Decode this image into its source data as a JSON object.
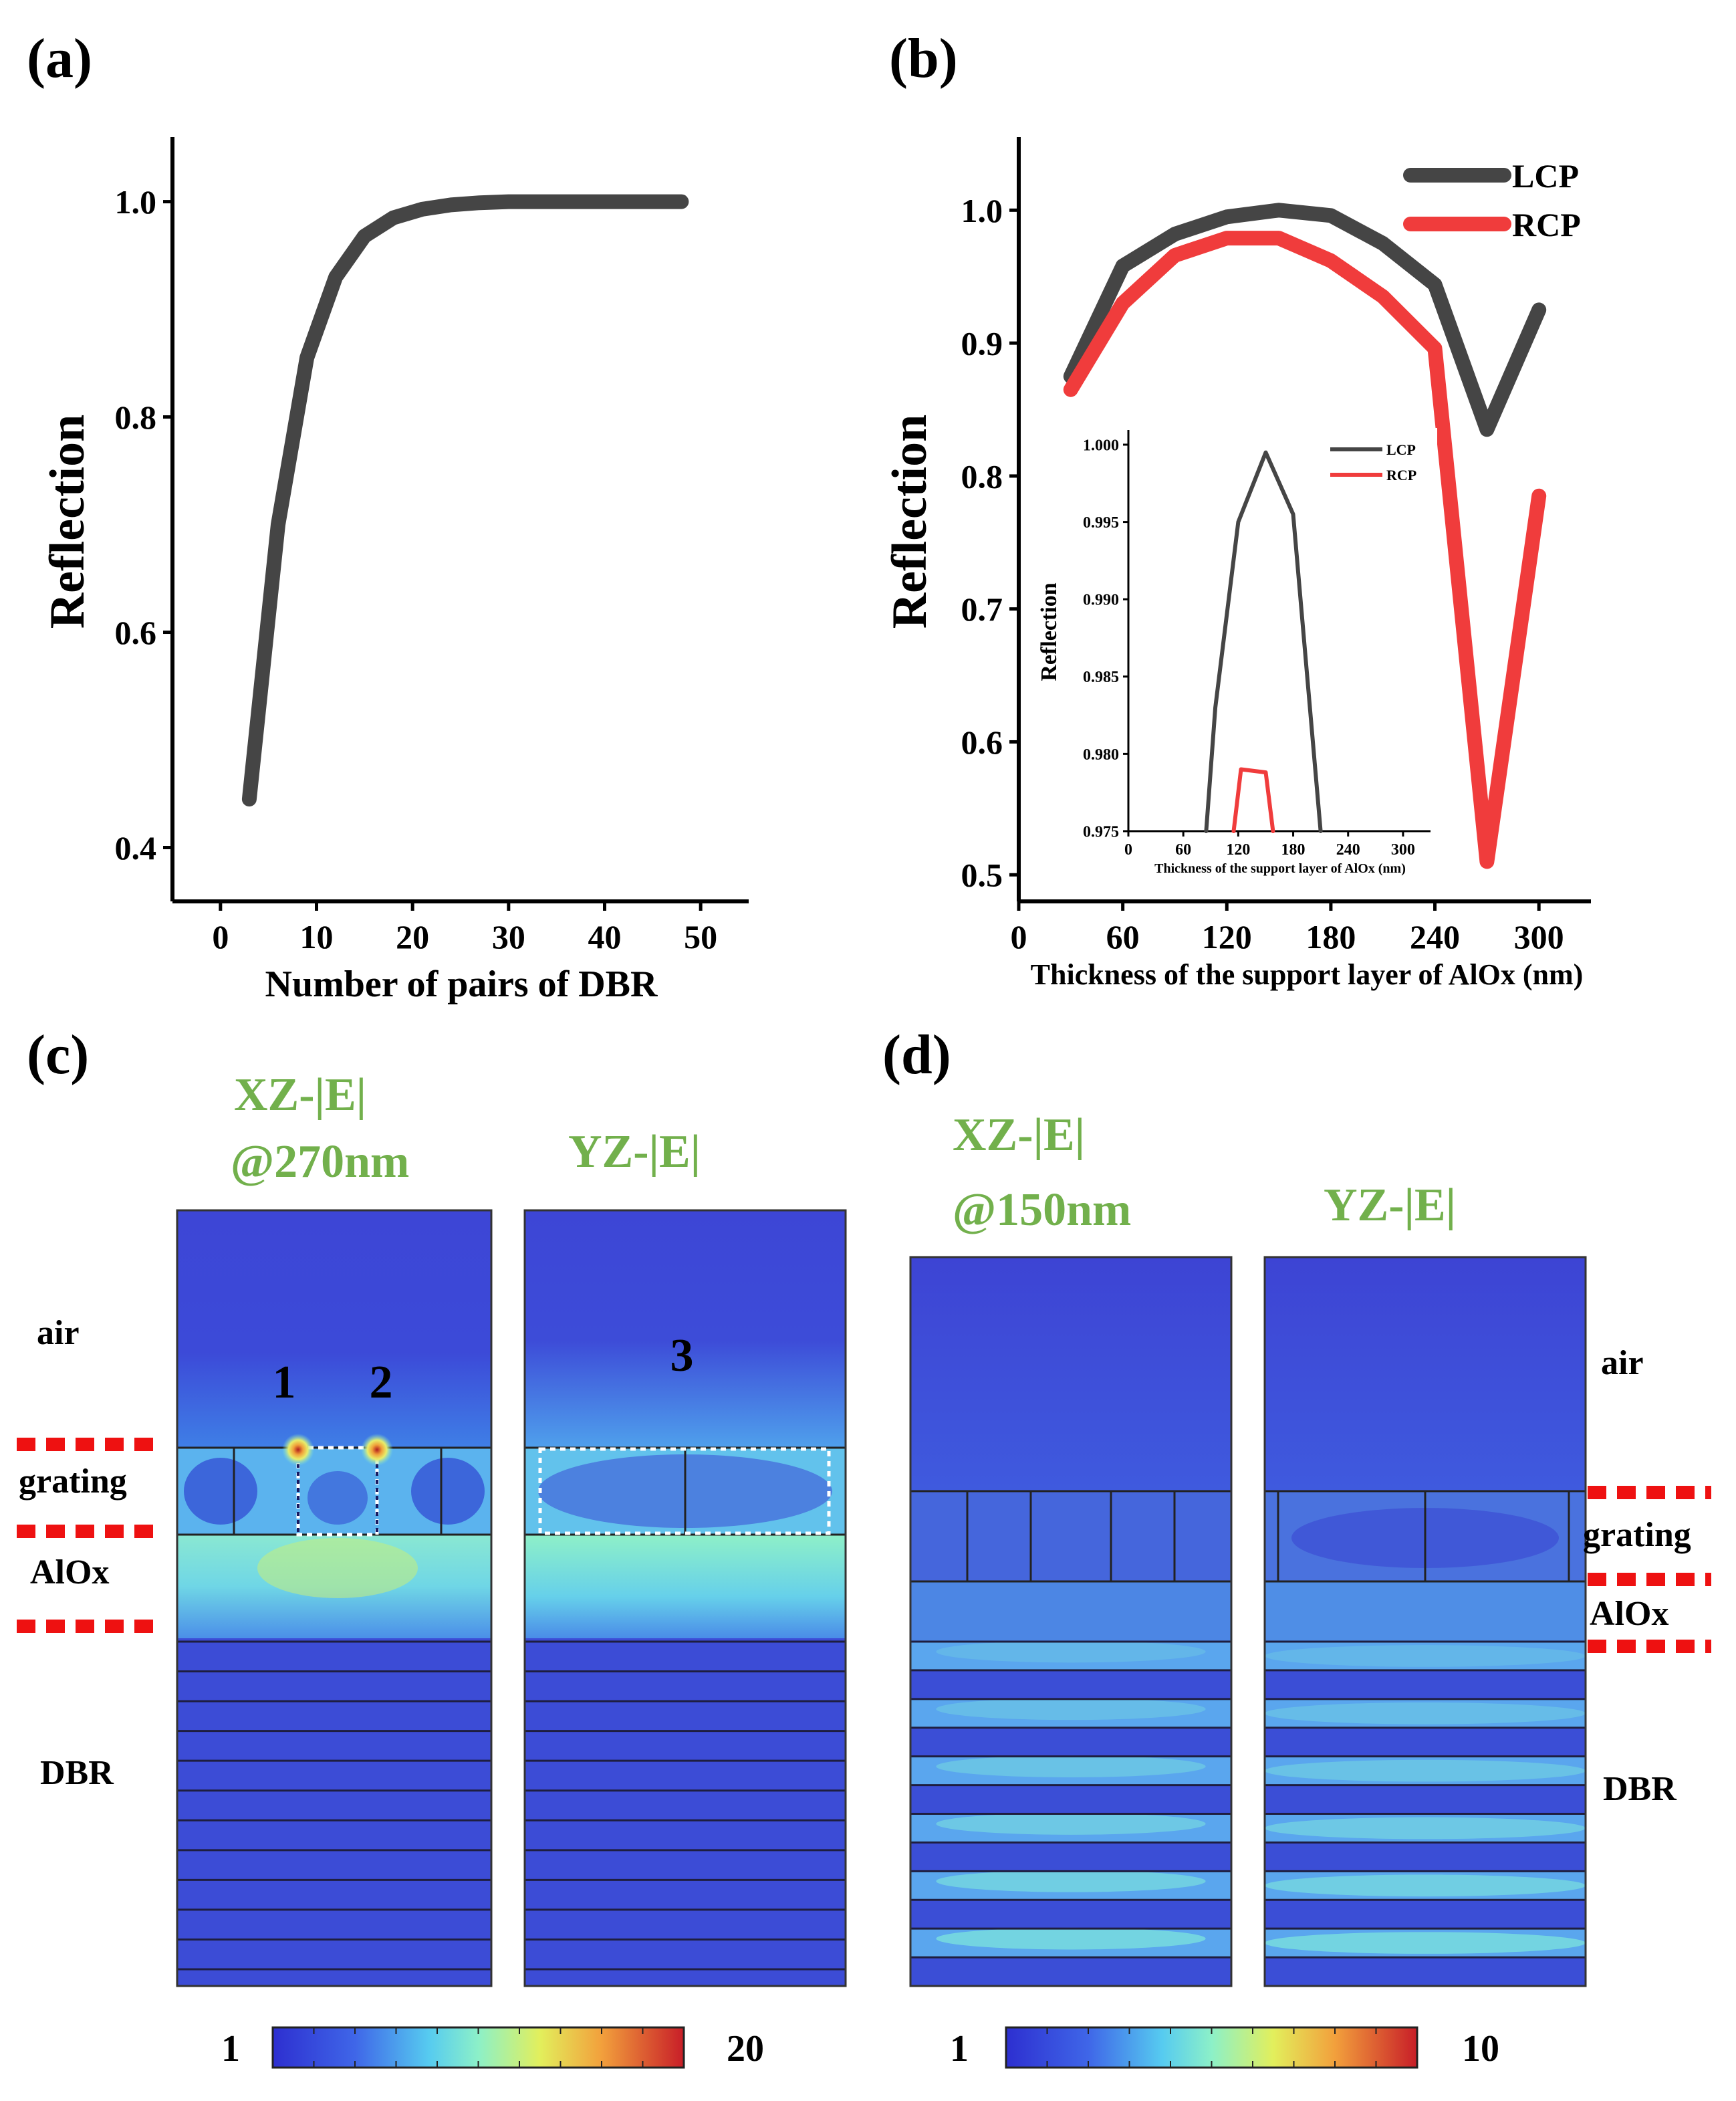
{
  "panels": {
    "a": {
      "label": "(a)"
    },
    "b": {
      "label": "(b)"
    },
    "c": {
      "label": "(c)"
    },
    "d": {
      "label": "(d)"
    }
  },
  "chart_data": [
    {
      "id": "a",
      "type": "line",
      "xlabel": "Number of pairs of DBR",
      "ylabel": "Reflection",
      "xlim": [
        -5,
        55
      ],
      "ylim": [
        0.35,
        1.06
      ],
      "xticks": [
        0,
        10,
        20,
        30,
        40,
        50
      ],
      "yticks": [
        0.4,
        0.6,
        0.8,
        1.0
      ],
      "xtick_labels": [
        "0",
        "10",
        "20",
        "30",
        "40",
        "50"
      ],
      "ytick_labels": [
        "0.4",
        "0.6",
        "0.8",
        "1.0"
      ],
      "series": [
        {
          "name": "DBR",
          "color": "#454545",
          "x": [
            3,
            6,
            9,
            12,
            15,
            18,
            21,
            24,
            27,
            30,
            36,
            42,
            48
          ],
          "y": [
            0.445,
            0.7,
            0.855,
            0.93,
            0.968,
            0.985,
            0.993,
            0.997,
            0.999,
            1.0,
            1.0,
            1.0,
            1.0
          ]
        }
      ]
    },
    {
      "id": "b",
      "type": "line",
      "xlabel": "Thickness of the support layer of AlOx (nm)",
      "ylabel": "Reflection",
      "xlim": [
        0,
        330
      ],
      "ylim": [
        0.48,
        1.055
      ],
      "xticks": [
        0,
        60,
        120,
        180,
        240,
        300
      ],
      "yticks": [
        0.5,
        0.6,
        0.7,
        0.8,
        0.9,
        1.0
      ],
      "xtick_labels": [
        "0",
        "60",
        "120",
        "180",
        "240",
        "300"
      ],
      "ytick_labels": [
        "0.5",
        "0.6",
        "0.7",
        "0.8",
        "0.9",
        "1.0"
      ],
      "legend": "top-right",
      "series": [
        {
          "name": "LCP",
          "color": "#454545",
          "x": [
            30,
            60,
            90,
            120,
            150,
            180,
            210,
            240,
            270,
            300
          ],
          "y": [
            0.875,
            0.958,
            0.982,
            0.995,
            1.0,
            0.996,
            0.975,
            0.944,
            0.835,
            0.925
          ]
        },
        {
          "name": "RCP",
          "color": "#f03c3c",
          "x": [
            30,
            60,
            90,
            120,
            150,
            180,
            210,
            240,
            270,
            300
          ],
          "y": [
            0.865,
            0.93,
            0.966,
            0.979,
            0.979,
            0.962,
            0.935,
            0.896,
            0.51,
            0.785
          ]
        }
      ]
    },
    {
      "id": "b-inset",
      "type": "line",
      "xlabel": "Thickness of the support layer of AlOx (nm)",
      "ylabel": "Reflection",
      "xlim": [
        0,
        330
      ],
      "ylim": [
        0.975,
        1.0
      ],
      "xticks": [
        0,
        60,
        120,
        180,
        240,
        300
      ],
      "yticks": [
        0.975,
        0.98,
        0.985,
        0.99,
        0.995,
        1.0
      ],
      "xtick_labels": [
        "0",
        "60",
        "120",
        "180",
        "240",
        "300"
      ],
      "ytick_labels": [
        "0.975",
        "0.980",
        "0.985",
        "0.990",
        "0.995",
        "1.000"
      ],
      "legend": "top-right",
      "series": [
        {
          "name": "LCP",
          "color": "#454545",
          "x": [
            85,
            95,
            120,
            150,
            180,
            210
          ],
          "y": [
            0.975,
            0.983,
            0.995,
            0.9995,
            0.9955,
            0.975
          ]
        },
        {
          "name": "RCP",
          "color": "#f03c3c",
          "x": [
            115,
            123,
            150,
            158
          ],
          "y": [
            0.975,
            0.979,
            0.9788,
            0.975
          ]
        }
      ]
    }
  ],
  "panel_c": {
    "title1_line1": "XZ-|E|",
    "title1_line2": "@270nm",
    "title2": "YZ-|E|",
    "labels": {
      "air": "air",
      "grating": "grating",
      "alox": "AlOx",
      "dbr": "DBR"
    },
    "markers": [
      "1",
      "2",
      "3"
    ],
    "colorbar": {
      "min": "1",
      "max": "20"
    }
  },
  "panel_d": {
    "title1_line1": "XZ-|E|",
    "title1_line2": "@150nm",
    "title2": "YZ-|E|",
    "labels": {
      "air": "air",
      "grating": "grating",
      "alox": "AlOx",
      "dbr": "DBR"
    },
    "colorbar": {
      "min": "1",
      "max": "10"
    }
  }
}
